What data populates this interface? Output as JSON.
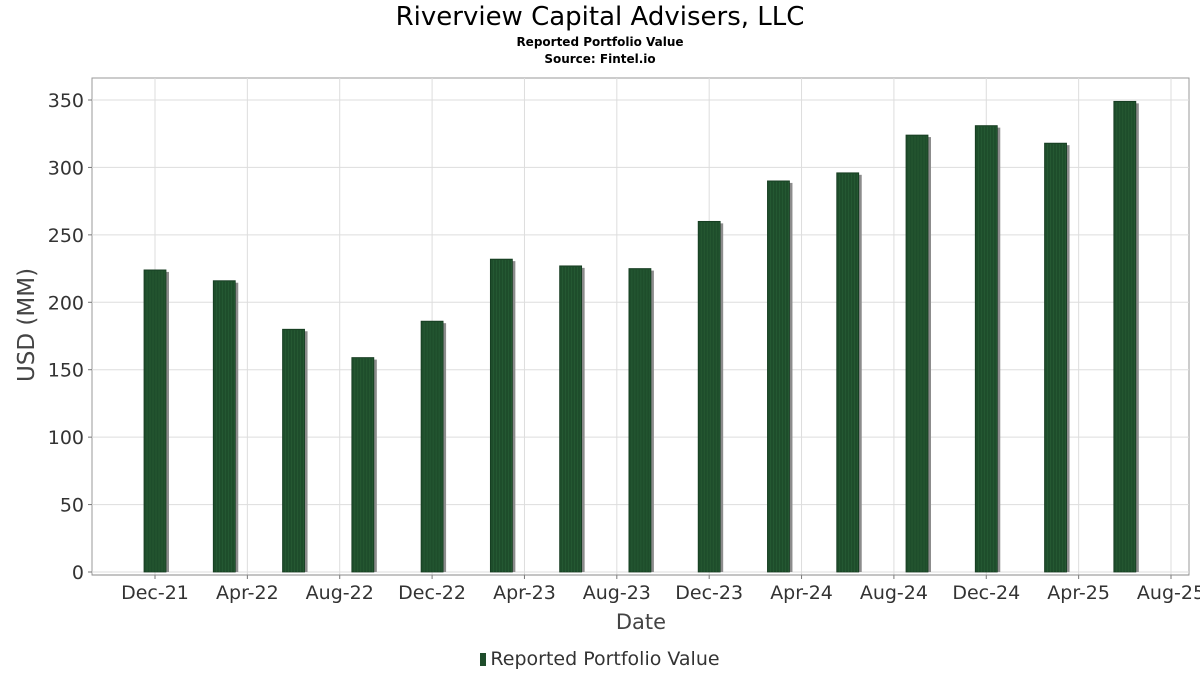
{
  "chart_data": {
    "type": "bar",
    "title": "Riverview Capital Advisers, LLC",
    "subtitle": "Reported Portfolio Value",
    "source": "Source: Fintel.io",
    "xlabel": "Date",
    "ylabel": "USD (MM)",
    "ylim": [
      0,
      365
    ],
    "yticks": [
      0,
      50,
      100,
      150,
      200,
      250,
      300,
      350
    ],
    "xticks": [
      "Dec-21",
      "Apr-22",
      "Aug-22",
      "Dec-22",
      "Apr-23",
      "Aug-23",
      "Dec-23",
      "Apr-24",
      "Aug-24",
      "Dec-24",
      "Apr-25",
      "Aug-25"
    ],
    "grid": true,
    "legend_position": "bottom",
    "categories": [
      "2021-12-31",
      "2022-03-31",
      "2022-06-30",
      "2022-09-30",
      "2022-12-31",
      "2023-03-31",
      "2023-06-30",
      "2023-09-30",
      "2023-12-31",
      "2024-03-31",
      "2024-06-30",
      "2024-09-30",
      "2024-12-31",
      "2025-03-31",
      "2025-06-30"
    ],
    "series": [
      {
        "name": "Reported Portfolio Value",
        "color": "#1e4d2b",
        "values": [
          224,
          216,
          180,
          159,
          186,
          232,
          227,
          225,
          260,
          290,
          296,
          324,
          331,
          318,
          349
        ]
      }
    ]
  }
}
